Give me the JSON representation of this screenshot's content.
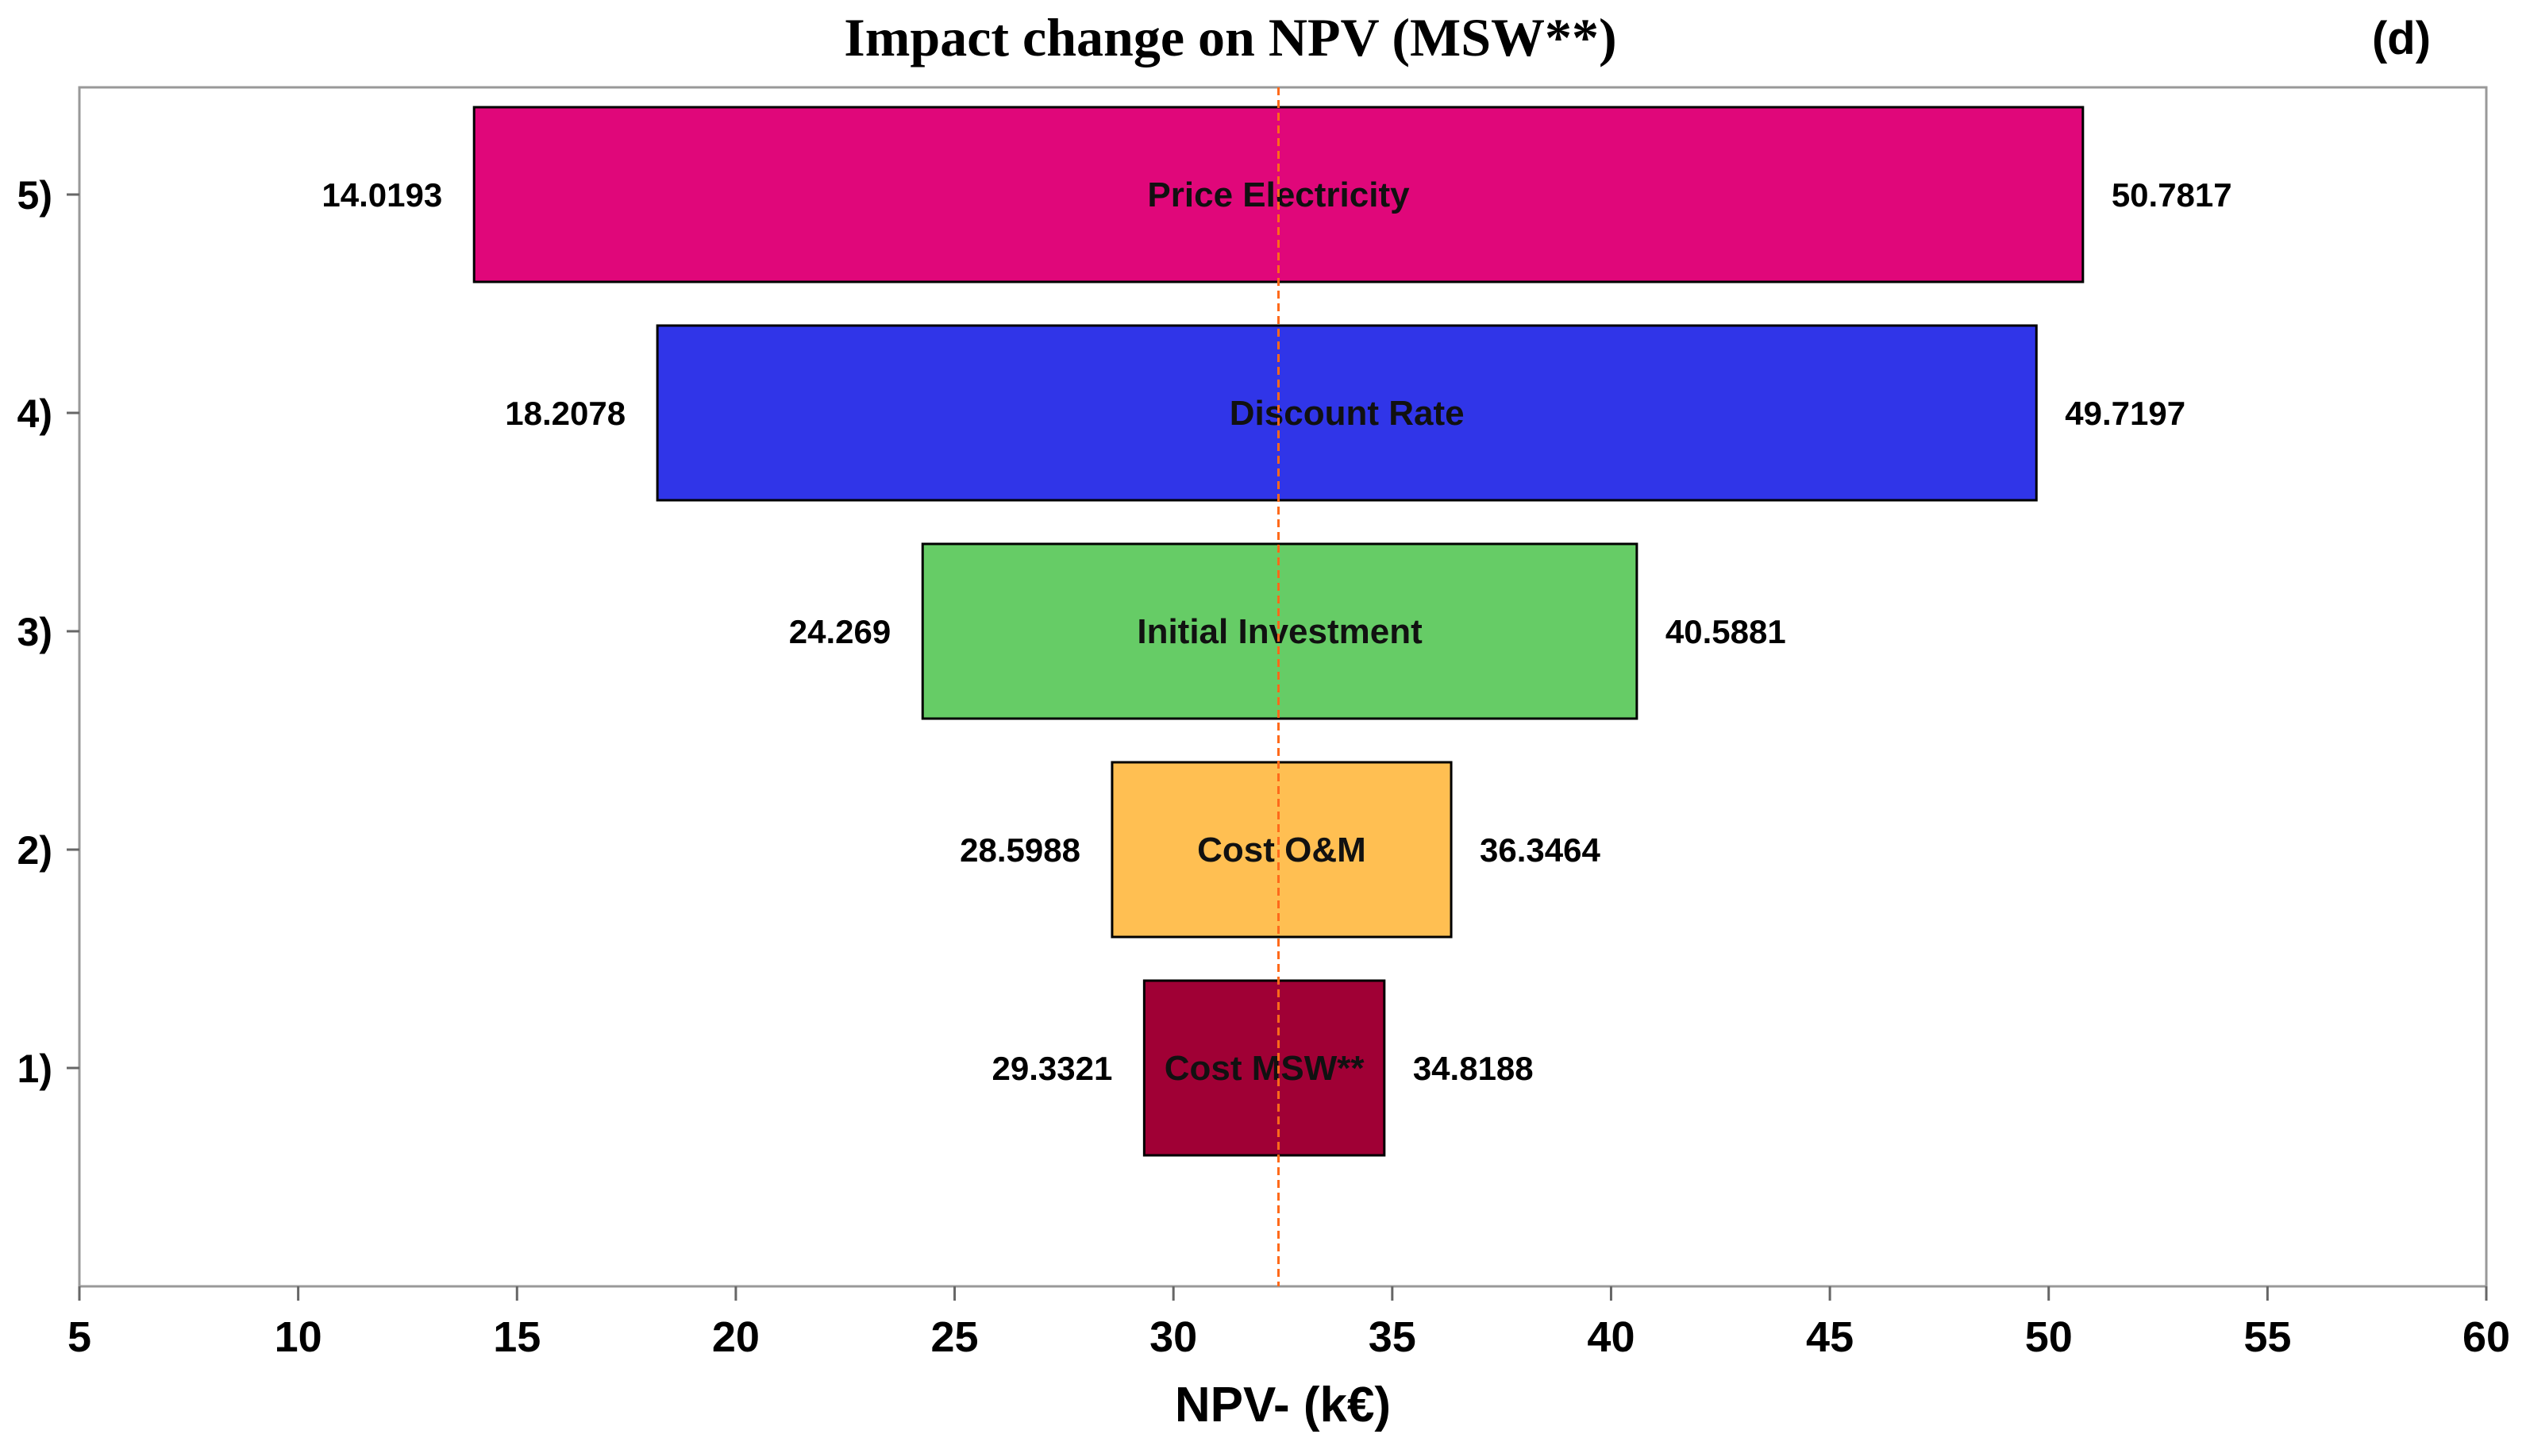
{
  "chart_data": {
    "type": "bar",
    "orientation": "horizontal",
    "style": "tornado",
    "title": "Impact change on NPV (MSW**)",
    "panel_label": "(d)",
    "xlabel": "NPV- (k€)",
    "ylabel": "",
    "xlim": [
      5,
      60
    ],
    "xticks": [
      5,
      10,
      15,
      20,
      25,
      30,
      35,
      40,
      45,
      50,
      55,
      60
    ],
    "reference_line": 32.4,
    "reference_color": "#ff6a1a",
    "categories": [
      "5)",
      "4)",
      "3)",
      "2)",
      "1)"
    ],
    "bars": [
      {
        "rank": "5)",
        "name": "Price Electricity",
        "low": 14.0193,
        "high": 50.7817,
        "low_label": "14.0193",
        "high_label": "50.7817",
        "color": "#e0077a"
      },
      {
        "rank": "4)",
        "name": "Discount Rate",
        "low": 18.2078,
        "high": 49.7197,
        "low_label": "18.2078",
        "high_label": "49.7197",
        "color": "#3035e8"
      },
      {
        "rank": "3)",
        "name": "Initial Investment",
        "low": 24.269,
        "high": 40.5881,
        "low_label": "24.269",
        "high_label": "40.5881",
        "color": "#66cc66"
      },
      {
        "rank": "2)",
        "name": "Cost O&M",
        "low": 28.5988,
        "high": 36.3464,
        "low_label": "28.5988",
        "high_label": "36.3464",
        "color": "#ffbf52"
      },
      {
        "rank": "1)",
        "name": "Cost MSW**",
        "low": 29.3321,
        "high": 34.8188,
        "low_label": "29.3321",
        "high_label": "34.8188",
        "color": "#a00035"
      }
    ]
  }
}
